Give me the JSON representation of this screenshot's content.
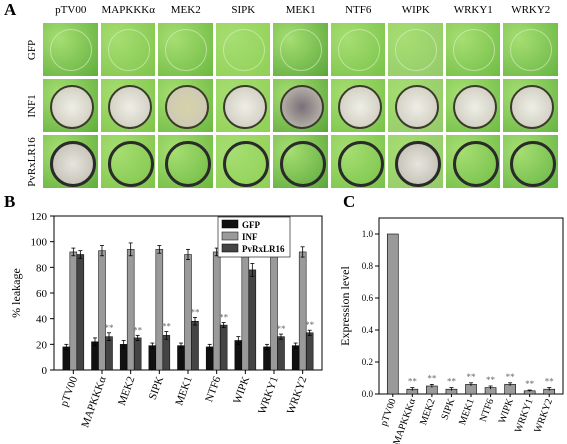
{
  "panelA": {
    "label": "A",
    "columns": [
      "pTV00",
      "MAPKKKα",
      "MEK2",
      "SIPK",
      "MEK1",
      "NTF6",
      "WIPK",
      "WRKY1",
      "WRKY2"
    ],
    "rows": [
      "GFP",
      "INF1",
      "PvRxLR16"
    ]
  },
  "panelB": {
    "label": "B",
    "chart_data": {
      "type": "bar",
      "ylabel": "% leakage",
      "ylim": [
        0,
        120
      ],
      "yticks": [
        "0",
        "20",
        "40",
        "60",
        "80",
        "100",
        "120"
      ],
      "categories": [
        "pTV00",
        "MAPKKKα",
        "MEK2",
        "SIPK",
        "MEK1",
        "NTF6",
        "WIPK",
        "WRKY1",
        "WRKY2"
      ],
      "series": [
        {
          "name": "GFP",
          "color": "#111111",
          "values": [
            18,
            22,
            20,
            19,
            19,
            18,
            23,
            18,
            19
          ],
          "errors": [
            2,
            3,
            3,
            2,
            2,
            2,
            3,
            2,
            2
          ]
        },
        {
          "name": "INF",
          "color": "#9a9a9a",
          "values": [
            92,
            93,
            94,
            94,
            90,
            92,
            94,
            94,
            92
          ],
          "errors": [
            3,
            4,
            5,
            3,
            4,
            3,
            3,
            4,
            4
          ]
        },
        {
          "name": "PvRxLR16",
          "color": "#444444",
          "values": [
            90,
            26,
            25,
            27,
            38,
            35,
            78,
            26,
            29
          ],
          "errors": [
            3,
            3,
            2,
            3,
            3,
            2,
            5,
            2,
            2
          ]
        }
      ],
      "significance": [
        "",
        "**",
        "**",
        "**",
        "**",
        "**",
        "",
        "**",
        "**"
      ],
      "legend_position": "top-right"
    }
  },
  "panelC": {
    "label": "C",
    "chart_data": {
      "type": "bar",
      "ylabel": "Expression level",
      "ylim": [
        0,
        1.1
      ],
      "yticks": [
        "0.0",
        "0.2",
        "0.4",
        "0.6",
        "0.8",
        "1.0"
      ],
      "categories": [
        "pTV00",
        "MAPKKKα",
        "MEK2",
        "SIPK",
        "MEK1",
        "NTF6",
        "WIPK",
        "WRKY1",
        "WRKY2"
      ],
      "values": [
        1.0,
        0.03,
        0.05,
        0.03,
        0.06,
        0.04,
        0.06,
        0.02,
        0.03
      ],
      "errors": [
        0,
        0.01,
        0.01,
        0.01,
        0.01,
        0.01,
        0.01,
        0.005,
        0.01
      ],
      "significance": [
        "",
        "**",
        "**",
        "**",
        "**",
        "**",
        "**",
        "**",
        "**"
      ],
      "bar_color": "#9a9a9a"
    }
  }
}
